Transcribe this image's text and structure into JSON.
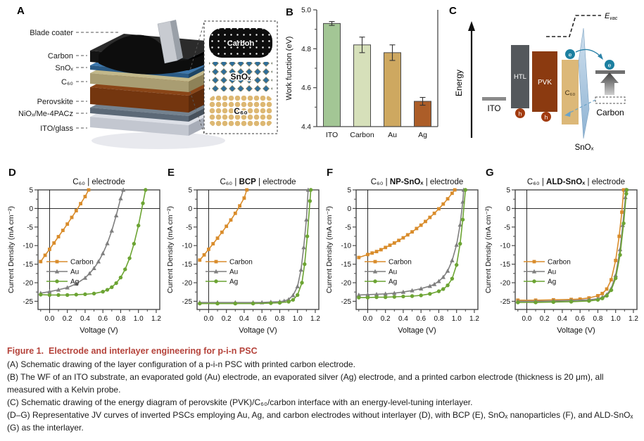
{
  "panels": {
    "a": {
      "label": "A",
      "layer_labels": [
        "Blade coater",
        "Carbon",
        "SnOₓ",
        "C₆₀",
        "Perovskite",
        "NiOₓ/Me-4PACz",
        "ITO/glass"
      ],
      "inset_labels": {
        "carbon": "Carbon",
        "snox": "SnOₓ",
        "c60": "C₆₀"
      },
      "layers": [
        {
          "name": "carbon",
          "top": "#2b2b2b",
          "front": "#141414",
          "side": "#000000"
        },
        {
          "name": "snox",
          "top": "#3c77ad",
          "front": "#2a5a85",
          "side": "#1d4464"
        },
        {
          "name": "c60",
          "top": "#c2b88a",
          "front": "#a99d72",
          "side": "#8e8258"
        },
        {
          "name": "perovskite",
          "top": "#8a4517",
          "front": "#74360f",
          "side": "#5d2a0a"
        },
        {
          "name": "niox",
          "top": "#74828f",
          "front": "#5c6977",
          "side": "#47525d"
        },
        {
          "name": "ito",
          "top": "#dcdfe6",
          "front": "#c3c7d0",
          "side": "#a8adb8"
        }
      ]
    },
    "c": {
      "label": "C",
      "energy": "Energy",
      "ito": "ITO",
      "htl": "HTL",
      "pvk": "PVK",
      "c60": "C₆₀",
      "snox": "SnOₓ",
      "carbon": "Carbon",
      "evac_main": "E",
      "evac_sub": "vac",
      "electron": "e",
      "hole": "h"
    }
  },
  "chart_data": [
    {
      "id": "B",
      "panel_label": "B",
      "type": "bar",
      "ylabel": "Work function (eV)",
      "ylim": [
        4.4,
        5.0
      ],
      "yticks": [
        4.4,
        4.6,
        4.8,
        5.0
      ],
      "yminor": [
        4.5,
        4.7,
        4.9
      ],
      "categories": [
        "ITO",
        "Carbon",
        "Au",
        "Ag"
      ],
      "values": [
        4.93,
        4.82,
        4.78,
        4.53
      ],
      "errors": [
        0.01,
        0.04,
        0.04,
        0.02
      ],
      "bar_colors": [
        "#A3C695",
        "#D6E0BA",
        "#CEA860",
        "#AC5D28"
      ]
    },
    {
      "id": "D",
      "panel_label": "D",
      "type": "line",
      "title_prefix": "C₆₀",
      "title_mid": "",
      "title_suffix": "electrode",
      "xlabel": "Voltage (V)",
      "ylabel": "Current Density (mA cm⁻²)",
      "xlim": [
        -0.13,
        1.24
      ],
      "ylim": [
        -27.2,
        5
      ],
      "xticks": [
        0,
        0.2,
        0.4,
        0.6,
        0.8,
        1.0,
        1.2
      ],
      "yticks": [
        5,
        0,
        -5,
        -10,
        -15,
        -20,
        -25
      ],
      "series": [
        {
          "name": "Carbon",
          "color": "#D98C2B",
          "marker": "square",
          "points": [
            [
              -0.1,
              -14.3
            ],
            [
              -0.05,
              -12.6
            ],
            [
              0.0,
              -11.0
            ],
            [
              0.05,
              -9.3
            ],
            [
              0.1,
              -7.6
            ],
            [
              0.15,
              -5.9
            ],
            [
              0.2,
              -4.2
            ],
            [
              0.25,
              -2.4
            ],
            [
              0.3,
              -0.6
            ],
            [
              0.35,
              1.3
            ],
            [
              0.4,
              3.2
            ],
            [
              0.44,
              5.0
            ]
          ]
        },
        {
          "name": "Au",
          "color": "#7F7F7F",
          "marker": "triangle",
          "points": [
            [
              -0.1,
              -22.8
            ],
            [
              0.0,
              -22.4
            ],
            [
              0.1,
              -21.9
            ],
            [
              0.2,
              -21.3
            ],
            [
              0.3,
              -20.3
            ],
            [
              0.4,
              -18.7
            ],
            [
              0.45,
              -17.5
            ],
            [
              0.5,
              -16.1
            ],
            [
              0.55,
              -14.3
            ],
            [
              0.6,
              -12.1
            ],
            [
              0.65,
              -9.4
            ],
            [
              0.7,
              -6.0
            ],
            [
              0.75,
              -1.9
            ],
            [
              0.8,
              2.7
            ],
            [
              0.83,
              5.0
            ]
          ]
        },
        {
          "name": "Ag",
          "color": "#6CA433",
          "marker": "circle",
          "points": [
            [
              -0.1,
              -23.2
            ],
            [
              0.0,
              -23.3
            ],
            [
              0.1,
              -23.3
            ],
            [
              0.2,
              -23.3
            ],
            [
              0.3,
              -23.2
            ],
            [
              0.4,
              -23.1
            ],
            [
              0.5,
              -22.9
            ],
            [
              0.6,
              -22.4
            ],
            [
              0.65,
              -21.9
            ],
            [
              0.7,
              -21.2
            ],
            [
              0.75,
              -20.1
            ],
            [
              0.8,
              -18.6
            ],
            [
              0.85,
              -16.4
            ],
            [
              0.9,
              -13.4
            ],
            [
              0.95,
              -9.5
            ],
            [
              1.0,
              -4.6
            ],
            [
              1.05,
              1.4
            ],
            [
              1.08,
              5.0
            ]
          ]
        }
      ]
    },
    {
      "id": "E",
      "panel_label": "E",
      "type": "line",
      "title_prefix": "C₆₀",
      "title_mid": "BCP",
      "title_suffix": "electrode",
      "xlabel": "Voltage (V)",
      "ylabel": "Current Density (mA cm⁻²)",
      "xlim": [
        -0.13,
        1.24
      ],
      "ylim": [
        -27.2,
        5
      ],
      "xticks": [
        0,
        0.2,
        0.4,
        0.6,
        0.8,
        1.0,
        1.2
      ],
      "yticks": [
        5,
        0,
        -5,
        -10,
        -15,
        -20,
        -25
      ],
      "series": [
        {
          "name": "Carbon",
          "color": "#D98C2B",
          "marker": "square",
          "points": [
            [
              -0.1,
              -13.9
            ],
            [
              -0.05,
              -12.5
            ],
            [
              0.0,
              -11.0
            ],
            [
              0.05,
              -9.5
            ],
            [
              0.1,
              -8.0
            ],
            [
              0.15,
              -6.4
            ],
            [
              0.2,
              -4.8
            ],
            [
              0.25,
              -3.1
            ],
            [
              0.3,
              -1.3
            ],
            [
              0.35,
              0.7
            ],
            [
              0.4,
              2.8
            ],
            [
              0.43,
              5.0
            ]
          ]
        },
        {
          "name": "Au",
          "color": "#7F7F7F",
          "marker": "triangle",
          "points": [
            [
              -0.1,
              -25.3
            ],
            [
              0.1,
              -25.3
            ],
            [
              0.3,
              -25.3
            ],
            [
              0.5,
              -25.3
            ],
            [
              0.6,
              -25.3
            ],
            [
              0.7,
              -25.2
            ],
            [
              0.8,
              -25.1
            ],
            [
              0.85,
              -24.9
            ],
            [
              0.9,
              -24.5
            ],
            [
              0.95,
              -23.4
            ],
            [
              1.0,
              -21.0
            ],
            [
              1.04,
              -16.5
            ],
            [
              1.07,
              -10.5
            ],
            [
              1.1,
              -3.0
            ],
            [
              1.12,
              5.0
            ]
          ]
        },
        {
          "name": "Ag",
          "color": "#6CA433",
          "marker": "circle",
          "points": [
            [
              -0.1,
              -25.6
            ],
            [
              0.1,
              -25.6
            ],
            [
              0.3,
              -25.6
            ],
            [
              0.5,
              -25.6
            ],
            [
              0.7,
              -25.5
            ],
            [
              0.8,
              -25.4
            ],
            [
              0.9,
              -25.1
            ],
            [
              0.95,
              -24.6
            ],
            [
              1.0,
              -23.3
            ],
            [
              1.05,
              -20.0
            ],
            [
              1.08,
              -15.0
            ],
            [
              1.11,
              -7.5
            ],
            [
              1.14,
              2.0
            ],
            [
              1.15,
              5.0
            ]
          ]
        }
      ]
    },
    {
      "id": "F",
      "panel_label": "F",
      "type": "line",
      "title_prefix": "C₆₀",
      "title_mid": "NP-SnOₓ",
      "title_suffix": "electrode",
      "xlabel": "Voltage (V)",
      "ylabel": "Current Density (mA cm⁻²)",
      "xlim": [
        -0.13,
        1.24
      ],
      "ylim": [
        -27.2,
        5
      ],
      "xticks": [
        0,
        0.2,
        0.4,
        0.6,
        0.8,
        1.0,
        1.2
      ],
      "yticks": [
        5,
        0,
        -5,
        -10,
        -15,
        -20,
        -25
      ],
      "series": [
        {
          "name": "Carbon",
          "color": "#D98C2B",
          "marker": "square",
          "points": [
            [
              -0.1,
              -13.2
            ],
            [
              0.0,
              -12.4
            ],
            [
              0.05,
              -12.0
            ],
            [
              0.1,
              -11.6
            ],
            [
              0.15,
              -11.1
            ],
            [
              0.2,
              -10.5
            ],
            [
              0.25,
              -9.9
            ],
            [
              0.3,
              -9.3
            ],
            [
              0.35,
              -8.6
            ],
            [
              0.4,
              -7.9
            ],
            [
              0.45,
              -7.1
            ],
            [
              0.5,
              -6.3
            ],
            [
              0.55,
              -5.4
            ],
            [
              0.6,
              -4.5
            ],
            [
              0.65,
              -3.5
            ],
            [
              0.7,
              -2.4
            ],
            [
              0.75,
              -1.3
            ],
            [
              0.8,
              -0.1
            ],
            [
              0.85,
              1.2
            ],
            [
              0.9,
              2.6
            ],
            [
              0.95,
              4.1
            ],
            [
              0.98,
              5.0
            ]
          ]
        },
        {
          "name": "Au",
          "color": "#7F7F7F",
          "marker": "triangle",
          "points": [
            [
              -0.1,
              -23.3
            ],
            [
              0.0,
              -23.2
            ],
            [
              0.1,
              -23.1
            ],
            [
              0.2,
              -23.0
            ],
            [
              0.3,
              -22.8
            ],
            [
              0.4,
              -22.5
            ],
            [
              0.5,
              -22.1
            ],
            [
              0.6,
              -21.6
            ],
            [
              0.7,
              -20.9
            ],
            [
              0.75,
              -20.4
            ],
            [
              0.8,
              -19.6
            ],
            [
              0.85,
              -18.5
            ],
            [
              0.9,
              -16.8
            ],
            [
              0.95,
              -14.0
            ],
            [
              1.0,
              -9.8
            ],
            [
              1.04,
              -4.4
            ],
            [
              1.07,
              1.8
            ],
            [
              1.08,
              5.0
            ]
          ]
        },
        {
          "name": "Ag",
          "color": "#6CA433",
          "marker": "circle",
          "points": [
            [
              -0.1,
              -24.0
            ],
            [
              0.0,
              -24.0
            ],
            [
              0.1,
              -23.9
            ],
            [
              0.2,
              -23.9
            ],
            [
              0.3,
              -23.8
            ],
            [
              0.4,
              -23.7
            ],
            [
              0.5,
              -23.6
            ],
            [
              0.6,
              -23.4
            ],
            [
              0.7,
              -23.0
            ],
            [
              0.8,
              -22.3
            ],
            [
              0.85,
              -21.7
            ],
            [
              0.9,
              -20.7
            ],
            [
              0.95,
              -18.9
            ],
            [
              1.0,
              -15.2
            ],
            [
              1.04,
              -9.5
            ],
            [
              1.07,
              -3.0
            ],
            [
              1.1,
              5.0
            ]
          ]
        }
      ]
    },
    {
      "id": "G",
      "panel_label": "G",
      "type": "line",
      "title_prefix": "C₆₀",
      "title_mid": "ALD-SnOₓ",
      "title_suffix": "electrode",
      "xlabel": "Voltage (V)",
      "ylabel": "Current Density (mA cm⁻²)",
      "xlim": [
        -0.13,
        1.24
      ],
      "ylim": [
        -27.2,
        5
      ],
      "xticks": [
        0,
        0.2,
        0.4,
        0.6,
        0.8,
        1.0,
        1.2
      ],
      "yticks": [
        5,
        0,
        -5,
        -10,
        -15,
        -20,
        -25
      ],
      "series": [
        {
          "name": "Carbon",
          "color": "#D98C2B",
          "marker": "square",
          "points": [
            [
              -0.1,
              -24.7
            ],
            [
              0.1,
              -24.7
            ],
            [
              0.3,
              -24.6
            ],
            [
              0.5,
              -24.5
            ],
            [
              0.6,
              -24.4
            ],
            [
              0.7,
              -24.1
            ],
            [
              0.8,
              -23.5
            ],
            [
              0.85,
              -22.9
            ],
            [
              0.9,
              -21.7
            ],
            [
              0.95,
              -19.2
            ],
            [
              1.0,
              -14.0
            ],
            [
              1.04,
              -7.5
            ],
            [
              1.07,
              -1.0
            ],
            [
              1.09,
              5.0
            ]
          ]
        },
        {
          "name": "Au",
          "color": "#7F7F7F",
          "marker": "triangle",
          "points": [
            [
              -0.1,
              -25.0
            ],
            [
              0.1,
              -25.0
            ],
            [
              0.3,
              -24.9
            ],
            [
              0.5,
              -24.8
            ],
            [
              0.7,
              -24.6
            ],
            [
              0.8,
              -24.3
            ],
            [
              0.85,
              -23.9
            ],
            [
              0.9,
              -23.2
            ],
            [
              0.95,
              -21.6
            ],
            [
              1.0,
              -18.0
            ],
            [
              1.05,
              -11.0
            ],
            [
              1.08,
              -4.5
            ],
            [
              1.11,
              3.0
            ],
            [
              1.115,
              5.0
            ]
          ]
        },
        {
          "name": "Ag",
          "color": "#6CA433",
          "marker": "circle",
          "points": [
            [
              -0.1,
              -25.3
            ],
            [
              0.1,
              -25.3
            ],
            [
              0.3,
              -25.2
            ],
            [
              0.5,
              -25.1
            ],
            [
              0.7,
              -24.9
            ],
            [
              0.8,
              -24.6
            ],
            [
              0.85,
              -24.2
            ],
            [
              0.9,
              -23.5
            ],
            [
              0.95,
              -22.0
            ],
            [
              1.0,
              -18.8
            ],
            [
              1.05,
              -12.5
            ],
            [
              1.09,
              -4.0
            ],
            [
              1.12,
              4.0
            ],
            [
              1.125,
              5.0
            ]
          ]
        }
      ]
    }
  ],
  "caption": {
    "title": "Figure 1.  Electrode and interlayer engineering for p-i-n PSC",
    "items": [
      "(A) Schematic drawing of the layer configuration of a p-i-n PSC with printed carbon electrode.",
      "(B) The WF of an ITO substrate, an evaporated gold (Au) electrode, an evaporated silver (Ag) electrode, and a printed carbon electrode (thickness is 20 μm), all measured with a Kelvin probe.",
      "(C) Schematic drawing of the energy diagram of perovskite (PVK)/C₆₀/carbon interface with an energy-level-tuning interlayer.",
      "(D–G) Representative JV curves of inverted PSCs employing Au, Ag, and carbon electrodes without interlayer (D), with BCP (E), SnOₓ nanoparticles (F), and ALD-SnOₓ (G) as the interlayer."
    ]
  },
  "colors": {
    "caption_red": "#B5433B",
    "carbon_series": "#D98C2B",
    "au_series": "#7F7F7F",
    "ag_series": "#6CA433"
  }
}
